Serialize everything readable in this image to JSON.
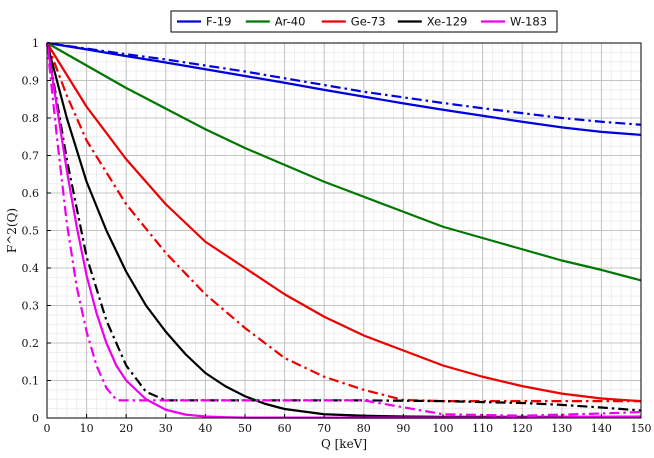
{
  "chart_data": {
    "type": "line",
    "xlabel": "Q [keV]",
    "ylabel": "F^2(Q)",
    "xlim": [
      0,
      150
    ],
    "ylim": [
      0,
      1
    ],
    "x_ticks": [
      0,
      10,
      20,
      30,
      40,
      50,
      60,
      70,
      80,
      90,
      100,
      110,
      120,
      130,
      140,
      150
    ],
    "y_ticks": [
      0,
      0.1,
      0.2,
      0.3,
      0.4,
      0.5,
      0.6,
      0.7,
      0.8,
      0.9,
      1
    ],
    "grid": true,
    "legend_position": "top-center",
    "colors": {
      "F-19": "#0000dd",
      "Ar-40": "#007700",
      "Ge-73": "#ee0000",
      "Xe-129": "#000000",
      "W-183": "#ee00ee"
    },
    "series": [
      {
        "name": "F-19",
        "line_style": "solid",
        "x": [
          0,
          10,
          20,
          30,
          40,
          50,
          60,
          70,
          80,
          90,
          100,
          110,
          120,
          130,
          140,
          150
        ],
        "y": [
          1,
          0.983,
          0.965,
          0.948,
          0.93,
          0.912,
          0.894,
          0.875,
          0.857,
          0.839,
          0.822,
          0.806,
          0.79,
          0.775,
          0.763,
          0.755
        ]
      },
      {
        "name": "F-19",
        "line_style": "dashdot",
        "show_in_legend": false,
        "x": [
          0,
          10,
          20,
          30,
          40,
          50,
          60,
          70,
          80,
          90,
          100,
          110,
          120,
          130,
          140,
          150
        ],
        "y": [
          1,
          0.985,
          0.97,
          0.956,
          0.94,
          0.924,
          0.906,
          0.888,
          0.87,
          0.855,
          0.84,
          0.826,
          0.813,
          0.8,
          0.79,
          0.782
        ]
      },
      {
        "name": "Ar-40",
        "line_style": "solid",
        "x": [
          0,
          10,
          20,
          30,
          40,
          50,
          60,
          70,
          80,
          90,
          100,
          110,
          120,
          130,
          140,
          150
        ],
        "y": [
          1,
          0.94,
          0.88,
          0.825,
          0.77,
          0.72,
          0.675,
          0.63,
          0.59,
          0.55,
          0.51,
          0.48,
          0.45,
          0.42,
          0.395,
          0.367
        ]
      },
      {
        "name": "Ge-73",
        "line_style": "solid",
        "x": [
          0,
          10,
          20,
          30,
          40,
          50,
          60,
          70,
          80,
          90,
          100,
          110,
          120,
          130,
          140,
          150
        ],
        "y": [
          1,
          0.83,
          0.69,
          0.57,
          0.47,
          0.4,
          0.33,
          0.27,
          0.22,
          0.18,
          0.14,
          0.11,
          0.085,
          0.065,
          0.052,
          0.045
        ]
      },
      {
        "name": "Ge-73",
        "line_style": "dashdot",
        "show_in_legend": false,
        "x": [
          0,
          5,
          10,
          20,
          30,
          40,
          50,
          60,
          70,
          80,
          90,
          100,
          110,
          120,
          130,
          140,
          150
        ],
        "y": [
          1,
          0.86,
          0.74,
          0.57,
          0.44,
          0.33,
          0.24,
          0.16,
          0.11,
          0.075,
          0.048,
          0.045,
          0.045,
          0.045,
          0.045,
          0.045,
          0.045
        ]
      },
      {
        "name": "Xe-129",
        "line_style": "solid",
        "x": [
          0,
          5,
          10,
          15,
          20,
          25,
          30,
          35,
          40,
          45,
          50,
          55,
          60,
          70,
          80,
          90,
          100,
          110,
          120,
          130,
          140,
          150
        ],
        "y": [
          1,
          0.8,
          0.63,
          0.5,
          0.39,
          0.3,
          0.23,
          0.17,
          0.12,
          0.085,
          0.058,
          0.038,
          0.024,
          0.01,
          0.006,
          0.004,
          0.003,
          0.003,
          0.003,
          0.003,
          0.003,
          0.003
        ]
      },
      {
        "name": "Xe-129",
        "line_style": "dashdot",
        "show_in_legend": false,
        "x": [
          0,
          5,
          10,
          15,
          20,
          25,
          30,
          35,
          40,
          60,
          80,
          100,
          120,
          130,
          140,
          150
        ],
        "y": [
          1,
          0.69,
          0.43,
          0.26,
          0.14,
          0.07,
          0.047,
          0.047,
          0.047,
          0.047,
          0.047,
          0.045,
          0.04,
          0.035,
          0.028,
          0.02
        ]
      },
      {
        "name": "W-183",
        "line_style": "solid",
        "x": [
          0,
          2.5,
          5,
          7.5,
          10,
          12.5,
          15,
          17.5,
          20,
          25,
          30,
          35,
          40,
          45,
          50,
          60,
          80,
          100,
          120,
          140,
          150
        ],
        "y": [
          1,
          0.83,
          0.66,
          0.51,
          0.38,
          0.28,
          0.2,
          0.14,
          0.1,
          0.05,
          0.022,
          0.009,
          0.004,
          0.002,
          0.001,
          0.001,
          0.001,
          0.001,
          0.001,
          0.003,
          0.004
        ]
      },
      {
        "name": "W-183",
        "line_style": "dashdot",
        "show_in_legend": false,
        "x": [
          0,
          2.5,
          5,
          7.5,
          10,
          12.5,
          15,
          17,
          18,
          20,
          40,
          60,
          80,
          100,
          120,
          140,
          150
        ],
        "y": [
          1,
          0.75,
          0.52,
          0.35,
          0.23,
          0.14,
          0.08,
          0.055,
          0.047,
          0.047,
          0.047,
          0.047,
          0.047,
          0.01,
          0.006,
          0.012,
          0.016
        ]
      }
    ]
  }
}
